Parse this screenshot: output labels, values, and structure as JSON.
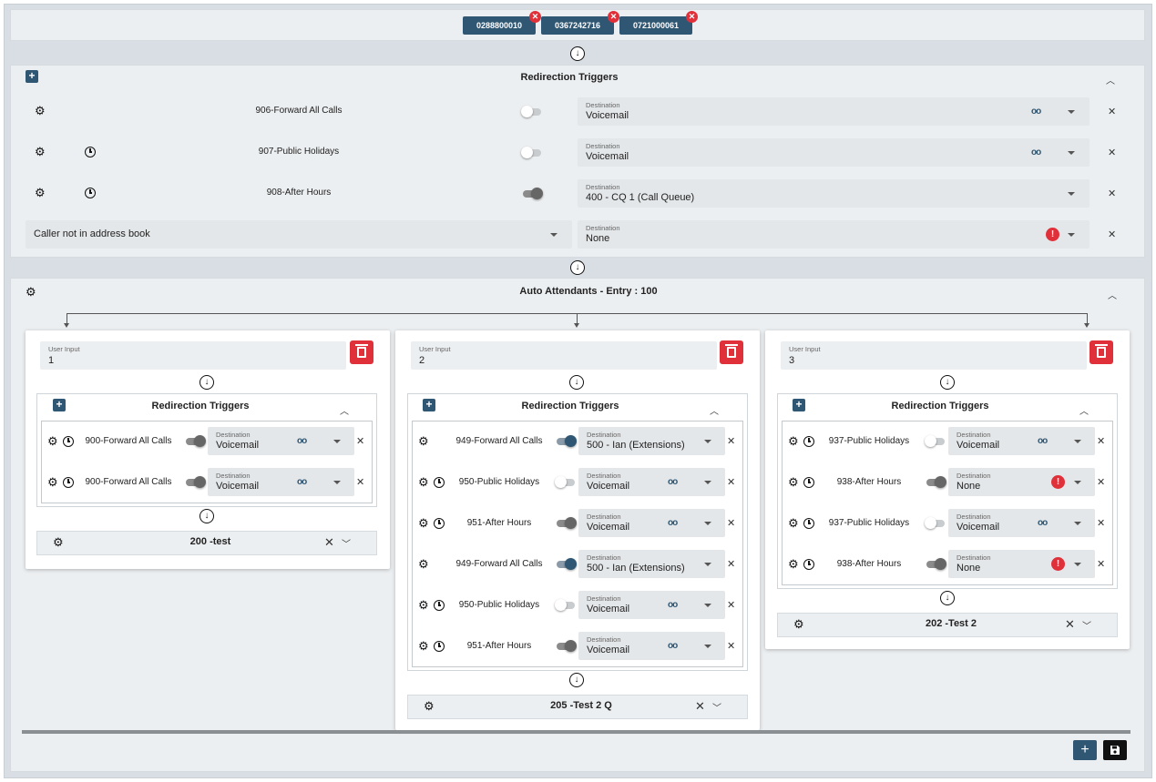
{
  "header": {
    "numbers": [
      "0288800010",
      "0367242716",
      "0721000061"
    ]
  },
  "main_triggers": {
    "title": "Redirection Triggers",
    "rows": [
      {
        "label": "906-Forward All Calls",
        "dest_label": "Destination",
        "dest_value": "Voicemail",
        "toggle": "off",
        "voicemail": true,
        "clock": false
      },
      {
        "label": "907-Public Holidays",
        "dest_label": "Destination",
        "dest_value": "Voicemail",
        "toggle": "off",
        "voicemail": true,
        "clock": true
      },
      {
        "label": "908-After Hours",
        "dest_label": "Destination",
        "dest_value": "400 - CQ 1 (Call Queue)",
        "toggle": "grey",
        "voicemail": false,
        "clock": true
      }
    ],
    "caller_select": "Caller not in address book",
    "caller_dest_label": "Destination",
    "caller_dest_value": "None"
  },
  "auto_attendant": {
    "title": "Auto Attendants - Entry : 100",
    "cards": [
      {
        "input_label": "User Input",
        "input_value": "1",
        "triggers_title": "Redirection Triggers",
        "rows": [
          {
            "label": "900-Forward All Calls",
            "dest_label": "Destination",
            "dest_value": "Voicemail",
            "toggle": "grey",
            "indicator": "voicemail"
          },
          {
            "label": "900-Forward All Calls",
            "dest_label": "Destination",
            "dest_value": "Voicemail",
            "toggle": "grey",
            "indicator": "voicemail"
          }
        ],
        "footer": "200 -test"
      },
      {
        "input_label": "User Input",
        "input_value": "2",
        "triggers_title": "Redirection Triggers",
        "rows": [
          {
            "label": "949-Forward All Calls",
            "dest_label": "Destination",
            "dest_value": "500 - Ian (Extensions)",
            "toggle": "on",
            "indicator": "none",
            "clock": false
          },
          {
            "label": "950-Public Holidays",
            "dest_label": "Destination",
            "dest_value": "Voicemail",
            "toggle": "off",
            "indicator": "voicemail",
            "clock": true
          },
          {
            "label": "951-After Hours",
            "dest_label": "Destination",
            "dest_value": "Voicemail",
            "toggle": "grey",
            "indicator": "voicemail",
            "clock": true
          },
          {
            "label": "949-Forward All Calls",
            "dest_label": "Destination",
            "dest_value": "500 - Ian (Extensions)",
            "toggle": "on",
            "indicator": "none",
            "clock": false
          },
          {
            "label": "950-Public Holidays",
            "dest_label": "Destination",
            "dest_value": "Voicemail",
            "toggle": "off",
            "indicator": "voicemail",
            "clock": true
          },
          {
            "label": "951-After Hours",
            "dest_label": "Destination",
            "dest_value": "Voicemail",
            "toggle": "grey",
            "indicator": "voicemail",
            "clock": true
          }
        ],
        "footer": "205 -Test 2 Q"
      },
      {
        "input_label": "User Input",
        "input_value": "3",
        "triggers_title": "Redirection Triggers",
        "rows": [
          {
            "label": "937-Public Holidays",
            "dest_label": "Destination",
            "dest_value": "Voicemail",
            "toggle": "off",
            "indicator": "voicemail"
          },
          {
            "label": "938-After Hours",
            "dest_label": "Destination",
            "dest_value": "None",
            "toggle": "grey",
            "indicator": "alert"
          },
          {
            "label": "937-Public Holidays",
            "dest_label": "Destination",
            "dest_value": "Voicemail",
            "toggle": "off",
            "indicator": "voicemail"
          },
          {
            "label": "938-After Hours",
            "dest_label": "Destination",
            "dest_value": "None",
            "toggle": "grey",
            "indicator": "alert"
          }
        ],
        "footer": "202 -Test 2"
      }
    ]
  },
  "icons": {
    "voicemail": "voicemail-icon",
    "gear": "gear-icon",
    "clock": "clock-icon",
    "alert": "alert-icon",
    "trash": "trash-icon",
    "save": "save-icon"
  },
  "colors": {
    "primary": "#2f5673",
    "danger": "#e0303a",
    "panel": "#eceff1",
    "background": "#d8dee3"
  }
}
